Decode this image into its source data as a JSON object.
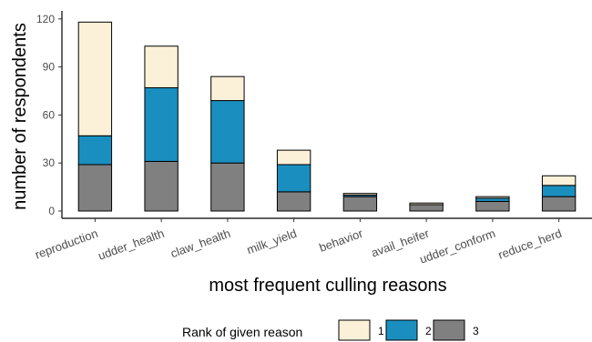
{
  "chart_data": {
    "type": "bar",
    "stacked": true,
    "xlabel": "most frequent culling reasons",
    "ylabel": "number of respondents",
    "ylim": [
      0,
      125
    ],
    "yticks": [
      0,
      30,
      60,
      90,
      120
    ],
    "grid": false,
    "legend_placement": "bottom",
    "categories": [
      "reproduction",
      "udder_health",
      "claw_health",
      "milk_yield",
      "behavior",
      "avail_heifer",
      "udder_conform",
      "reduce_herd"
    ],
    "series": [
      {
        "name": "3",
        "color": "#808080",
        "values": [
          29,
          31,
          30,
          12,
          9,
          4,
          6,
          9
        ]
      },
      {
        "name": "2",
        "color": "#1a8fbf",
        "values": [
          18,
          46,
          39,
          17,
          1,
          0,
          2,
          7
        ]
      },
      {
        "name": "1",
        "color": "#fbf0d8",
        "values": [
          71,
          26,
          15,
          9,
          1,
          1,
          1,
          6
        ]
      }
    ],
    "legend": {
      "title": "Rank of given reason",
      "order": [
        "1",
        "2",
        "3"
      ]
    }
  }
}
